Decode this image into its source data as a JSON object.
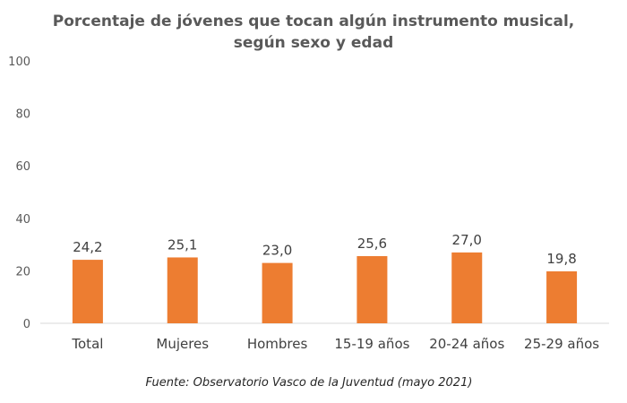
{
  "chart_data": {
    "type": "bar",
    "title": "Porcentaje de jóvenes que tocan algún instrumento musical,",
    "subtitle": "según sexo y edad",
    "categories": [
      "Total",
      "Mujeres",
      "Hombres",
      "15-19 años",
      "20-24 años",
      "25-29 años"
    ],
    "values": [
      24.2,
      25.1,
      23.0,
      25.6,
      27.0,
      19.8
    ],
    "data_labels": [
      "24,2",
      "25,1",
      "23,0",
      "25,6",
      "27,0",
      "19,8"
    ],
    "yticks": [
      "0",
      "20",
      "40",
      "60",
      "80",
      "100"
    ],
    "ylim": [
      0,
      100
    ],
    "xlabel": "",
    "ylabel": "",
    "grid": false,
    "legend": "none",
    "bar_color": "#ED7D31",
    "axis_color": "#D9D9D9",
    "source": "Fuente: Observatorio Vasco de la Juventud (mayo 2021)"
  }
}
